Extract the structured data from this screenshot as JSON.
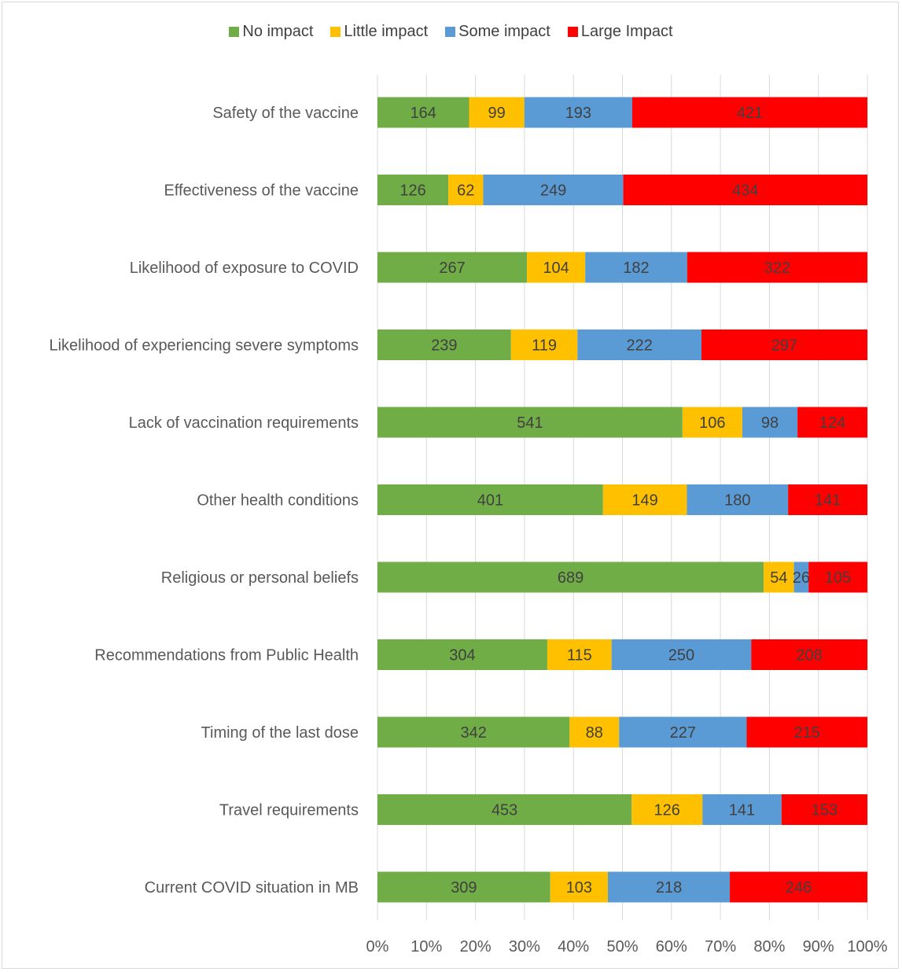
{
  "chart_data": {
    "type": "bar",
    "orientation": "horizontal",
    "stacked": "percent",
    "categories": [
      "Safety of the vaccine",
      "Effectiveness of the vaccine",
      "Likelihood of exposure to COVID",
      "Likelihood of experiencing severe symptoms",
      "Lack of vaccination requirements",
      "Other health conditions",
      "Religious or personal beliefs",
      "Recommendations from Public Health",
      "Timing of the last dose",
      "Travel requirements",
      "Current COVID situation in MB"
    ],
    "series": [
      {
        "name": "No impact",
        "color": "#70ad47",
        "values": [
          164,
          126,
          267,
          239,
          541,
          401,
          689,
          304,
          342,
          453,
          309
        ]
      },
      {
        "name": "Little impact",
        "color": "#ffc000",
        "values": [
          99,
          62,
          104,
          119,
          106,
          149,
          54,
          115,
          88,
          126,
          103
        ]
      },
      {
        "name": "Some impact",
        "color": "#5b9bd5",
        "values": [
          193,
          249,
          182,
          222,
          98,
          180,
          26,
          250,
          227,
          141,
          218
        ]
      },
      {
        "name": "Large Impact",
        "color": "#ff0000",
        "values": [
          421,
          434,
          322,
          297,
          124,
          141,
          105,
          208,
          215,
          153,
          246
        ]
      }
    ],
    "x_ticks": [
      "0%",
      "10%",
      "20%",
      "30%",
      "40%",
      "50%",
      "60%",
      "70%",
      "80%",
      "90%",
      "100%"
    ],
    "xlim": [
      0,
      100
    ],
    "grid": true,
    "legend_position": "top",
    "label_color": "#404040"
  }
}
